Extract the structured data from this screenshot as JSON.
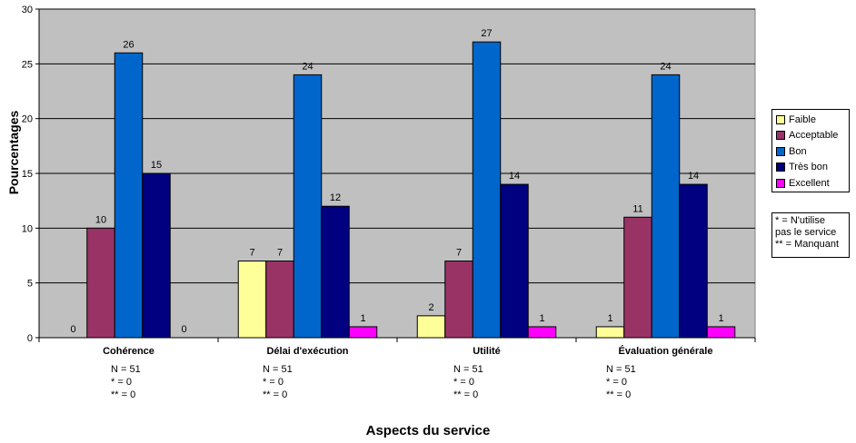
{
  "chart_data": {
    "type": "bar",
    "categories": [
      "Cohérence",
      "Délai d'exécution",
      "Utilité",
      "Évaluation générale"
    ],
    "series": [
      {
        "name": "Faible",
        "color": "#ffff99",
        "values": [
          0,
          7,
          2,
          1
        ]
      },
      {
        "name": "Acceptable",
        "color": "#993366",
        "values": [
          10,
          7,
          7,
          11
        ]
      },
      {
        "name": "Bon",
        "color": "#0066cc",
        "values": [
          26,
          24,
          27,
          24
        ]
      },
      {
        "name": "Très bon",
        "color": "#000080",
        "values": [
          15,
          12,
          14,
          14
        ]
      },
      {
        "name": "Excellent",
        "color": "#ff00ff",
        "values": [
          0,
          1,
          1,
          1
        ]
      }
    ],
    "ylabel": "Pourcentages",
    "xlabel": "Aspects du service",
    "ylim": [
      0,
      30
    ],
    "yticks": [
      0,
      5,
      10,
      15,
      20,
      25,
      30
    ],
    "grid": true,
    "plot_background": "#c0c0c0",
    "legend_position": "right",
    "data_labels": [
      [
        "0",
        "10",
        "26",
        "15",
        "0"
      ],
      [
        "7",
        "7",
        "24",
        "12",
        "1"
      ],
      [
        "2",
        "7",
        "27",
        "14",
        "1"
      ],
      [
        "1",
        "11",
        "24",
        "14",
        "1"
      ]
    ]
  },
  "subnotes": [
    [
      "N = 51",
      "* = 0",
      "** = 0"
    ],
    [
      "N = 51",
      "* = 0",
      "** = 0"
    ],
    [
      "N = 51",
      "* = 0",
      "** = 0"
    ],
    [
      "N = 51",
      "* = 0",
      "** = 0"
    ]
  ],
  "footnote": {
    "line1": "* =  N'utilise",
    "line2": "pas le service",
    "line3": "** = Manquant"
  }
}
